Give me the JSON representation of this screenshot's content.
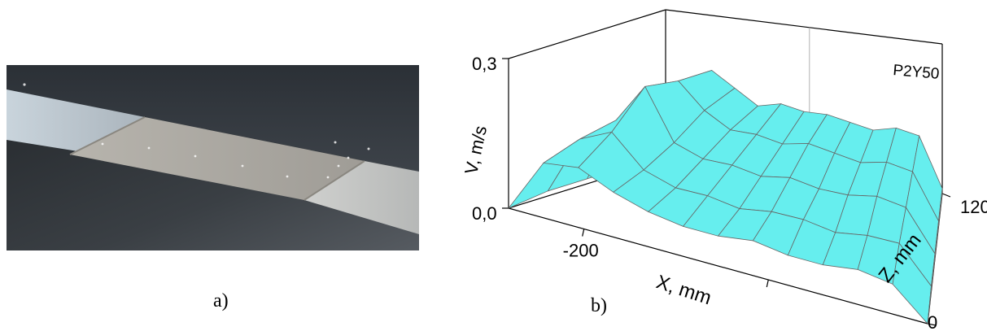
{
  "captions": {
    "a": "a)",
    "b": "b)"
  },
  "figure_a": {
    "kind": "photograph"
  },
  "chart_data": {
    "type": "surface3d",
    "annotation": "P2Y50",
    "xlabel": "X, mm",
    "ylabel": "V, m/s",
    "zlabel": "Z, mm",
    "x_ticks": [
      "-200"
    ],
    "z_ticks": [
      "0",
      "120"
    ],
    "y_ticks": [
      "0,0",
      "0,3"
    ],
    "ylim": [
      0,
      0.3
    ],
    "zlim": [
      0,
      120
    ],
    "surface_color": "#66eeee",
    "mesh_color": "#666666",
    "x_front": [
      0.0,
      0.05,
      0.28,
      0.52,
      0.75,
      0.97
    ],
    "x_back": [
      0.0,
      0.12,
      0.3,
      0.5,
      0.7,
      0.9,
      1.0
    ],
    "mesh": {
      "ncols": 13,
      "nrows": 5,
      "values": [
        [
          0.01,
          0.16,
          0.19,
          0.16,
          0.13,
          0.14,
          0.13,
          0.13,
          0.12,
          0.11,
          0.12,
          0.11,
          0.01
        ],
        [
          0.01,
          0.15,
          0.2,
          0.15,
          0.12,
          0.12,
          0.11,
          0.12,
          0.11,
          0.1,
          0.11,
          0.1,
          0.01
        ],
        [
          0.01,
          0.14,
          0.22,
          0.12,
          0.1,
          0.1,
          0.09,
          0.1,
          0.09,
          0.09,
          0.1,
          0.09,
          0.01
        ],
        [
          0.01,
          0.13,
          0.16,
          0.1,
          0.08,
          0.08,
          0.07,
          0.08,
          0.08,
          0.07,
          0.08,
          0.08,
          0.01
        ],
        [
          0.0,
          0.11,
          0.12,
          0.09,
          0.07,
          0.06,
          0.06,
          0.07,
          0.06,
          0.06,
          0.07,
          0.06,
          0.0
        ]
      ]
    }
  }
}
